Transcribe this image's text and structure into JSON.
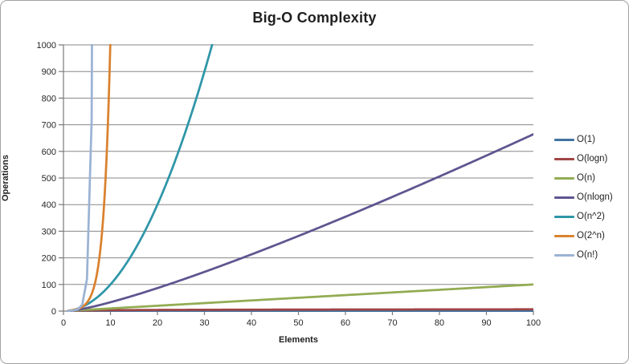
{
  "chart_data": {
    "type": "line",
    "title": "Big-O Complexity",
    "xlabel": "Elements",
    "ylabel": "Operations",
    "xlim": [
      0,
      100
    ],
    "ylim": [
      0,
      1000
    ],
    "x_tick_labels": [
      "0",
      "10",
      "20",
      "30",
      "40",
      "50",
      "60",
      "70",
      "80",
      "90",
      "100"
    ],
    "y_tick_labels": [
      "0",
      "100",
      "200",
      "300",
      "400",
      "500",
      "600",
      "700",
      "800",
      "900",
      "1000"
    ],
    "grid": "horizontal",
    "legend_position": "right",
    "style": {
      "grid_color": "#878787",
      "axis_color": "#7a7a7a",
      "text_color": "#1f1f1f",
      "frame_border_color": "#a3a3a3",
      "background": "#ffffff"
    },
    "series": [
      {
        "name": "O(1)",
        "color": "#4173A0",
        "fn": "one",
        "points": [
          [
            1,
            1
          ],
          [
            10,
            1
          ],
          [
            50,
            1
          ],
          [
            100,
            1
          ]
        ]
      },
      {
        "name": "O(logn)",
        "color": "#A04545",
        "fn": "log2",
        "points": [
          [
            1,
            0
          ],
          [
            2,
            1
          ],
          [
            4,
            2
          ],
          [
            8,
            3
          ],
          [
            16,
            4
          ],
          [
            32,
            5
          ],
          [
            64,
            6
          ],
          [
            100,
            6.64
          ]
        ]
      },
      {
        "name": "O(n)",
        "color": "#92AC52",
        "fn": "linear",
        "points": [
          [
            1,
            1
          ],
          [
            10,
            10
          ],
          [
            25,
            25
          ],
          [
            50,
            50
          ],
          [
            75,
            75
          ],
          [
            100,
            100
          ]
        ]
      },
      {
        "name": "O(nlogn)",
        "color": "#5F5590",
        "fn": "nlogn",
        "points": [
          [
            1,
            0
          ],
          [
            10,
            33.2
          ],
          [
            20,
            86.4
          ],
          [
            40,
            212.9
          ],
          [
            60,
            354.4
          ],
          [
            80,
            505.8
          ],
          [
            100,
            664.4
          ]
        ]
      },
      {
        "name": "O(n^2)",
        "color": "#2F96A8",
        "fn": "square",
        "points": [
          [
            1,
            1
          ],
          [
            5,
            25
          ],
          [
            10,
            100
          ],
          [
            15,
            225
          ],
          [
            20,
            400
          ],
          [
            25,
            625
          ],
          [
            30,
            900
          ],
          [
            31.6,
            1000
          ]
        ]
      },
      {
        "name": "O(2^n)",
        "color": "#D9822F",
        "fn": "pow2",
        "points": [
          [
            1,
            2
          ],
          [
            2,
            4
          ],
          [
            4,
            16
          ],
          [
            6,
            64
          ],
          [
            8,
            256
          ],
          [
            9,
            512
          ],
          [
            10,
            1024
          ]
        ]
      },
      {
        "name": "O(n!)",
        "color": "#9BB3D4",
        "fn": "factorial",
        "points": [
          [
            1,
            1
          ],
          [
            2,
            2
          ],
          [
            3,
            6
          ],
          [
            4,
            24
          ],
          [
            5,
            120
          ],
          [
            6,
            720
          ],
          [
            7,
            5040
          ]
        ]
      }
    ]
  }
}
